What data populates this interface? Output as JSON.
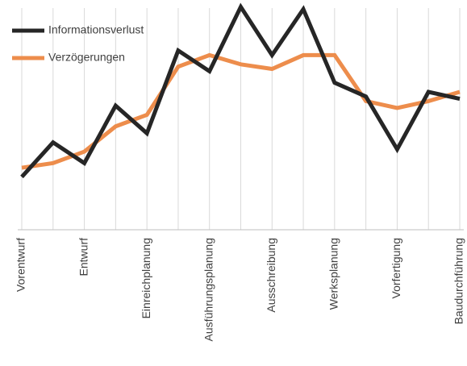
{
  "chart_data": {
    "type": "line",
    "categories": [
      "Vorentwurf",
      null,
      "Entwurf",
      null,
      "Einreichplanung",
      null,
      "Ausführungsplanung",
      null,
      "Ausschreibung",
      null,
      "Werksplanung",
      null,
      "Vorfertigung",
      null,
      "Baudurchführung"
    ],
    "series": [
      {
        "name": "Informationsverlust",
        "color": "#262626",
        "values": [
          23,
          38,
          29,
          54,
          42,
          78,
          69,
          97,
          76,
          96,
          64,
          58,
          35,
          60,
          57
        ]
      },
      {
        "name": "Verzögerungen",
        "color": "#ed8d4c",
        "values": [
          27,
          29,
          34,
          45,
          50,
          71,
          76,
          72,
          70,
          76,
          76,
          56,
          53,
          56,
          60
        ]
      }
    ],
    "ylim": [
      0,
      100
    ],
    "grid": true,
    "legend": "top-left"
  }
}
